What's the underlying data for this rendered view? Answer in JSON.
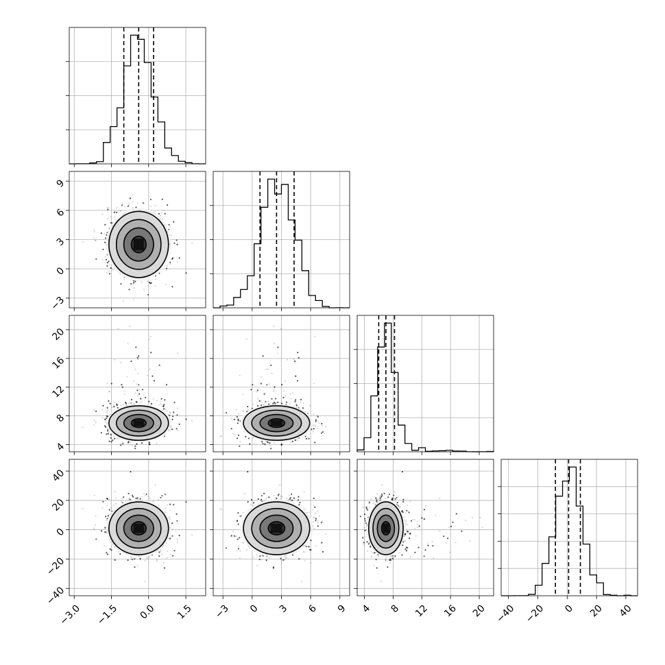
{
  "chart_data": {
    "type": "corner",
    "title": "",
    "grid": true,
    "legend": "none",
    "parameters": [
      {
        "range": [
          -3.2,
          2.3
        ],
        "ticks": [
          -3.0,
          -1.5,
          0.0,
          1.5
        ],
        "tick_labels": [
          "−3.0",
          "−1.5",
          "0.0",
          "1.5"
        ],
        "mean": -0.4,
        "sd": 0.6,
        "quantiles": [
          -1.0,
          -0.4,
          0.2
        ]
      },
      {
        "range": [
          -4,
          10
        ],
        "ticks": [
          -3,
          0,
          3,
          6,
          9
        ],
        "tick_labels": [
          "−3",
          "0",
          "3",
          "6",
          "9"
        ],
        "mean": 2.5,
        "sd": 1.7,
        "quantiles": [
          0.8,
          2.5,
          4.3
        ]
      },
      {
        "range": [
          3,
          22
        ],
        "ticks": [
          4,
          8,
          12,
          16,
          20
        ],
        "tick_labels": [
          "4",
          "8",
          "12",
          "16",
          "20"
        ],
        "mean": 7.0,
        "sd": 1.2,
        "quantiles": [
          6.0,
          7.0,
          8.2
        ]
      },
      {
        "range": [
          -45,
          48
        ],
        "ticks": [
          -40,
          -20,
          0,
          20,
          40
        ],
        "tick_labels": [
          "−40",
          "−20",
          "0",
          "20",
          "40"
        ],
        "mean": 1.0,
        "sd": 9.0,
        "quantiles": [
          -8,
          1,
          9
        ]
      }
    ],
    "histogram_ticks": [
      [
        0.25,
        0.5,
        0.75
      ],
      [
        0.25,
        0.5,
        0.75
      ],
      [
        0.25,
        0.5,
        0.75
      ],
      [
        0.2,
        0.4,
        0.6,
        0.8
      ]
    ],
    "contour_levels_sigma": [
      0.5,
      1.0,
      1.5,
      2.0
    ],
    "samples": 8000
  }
}
